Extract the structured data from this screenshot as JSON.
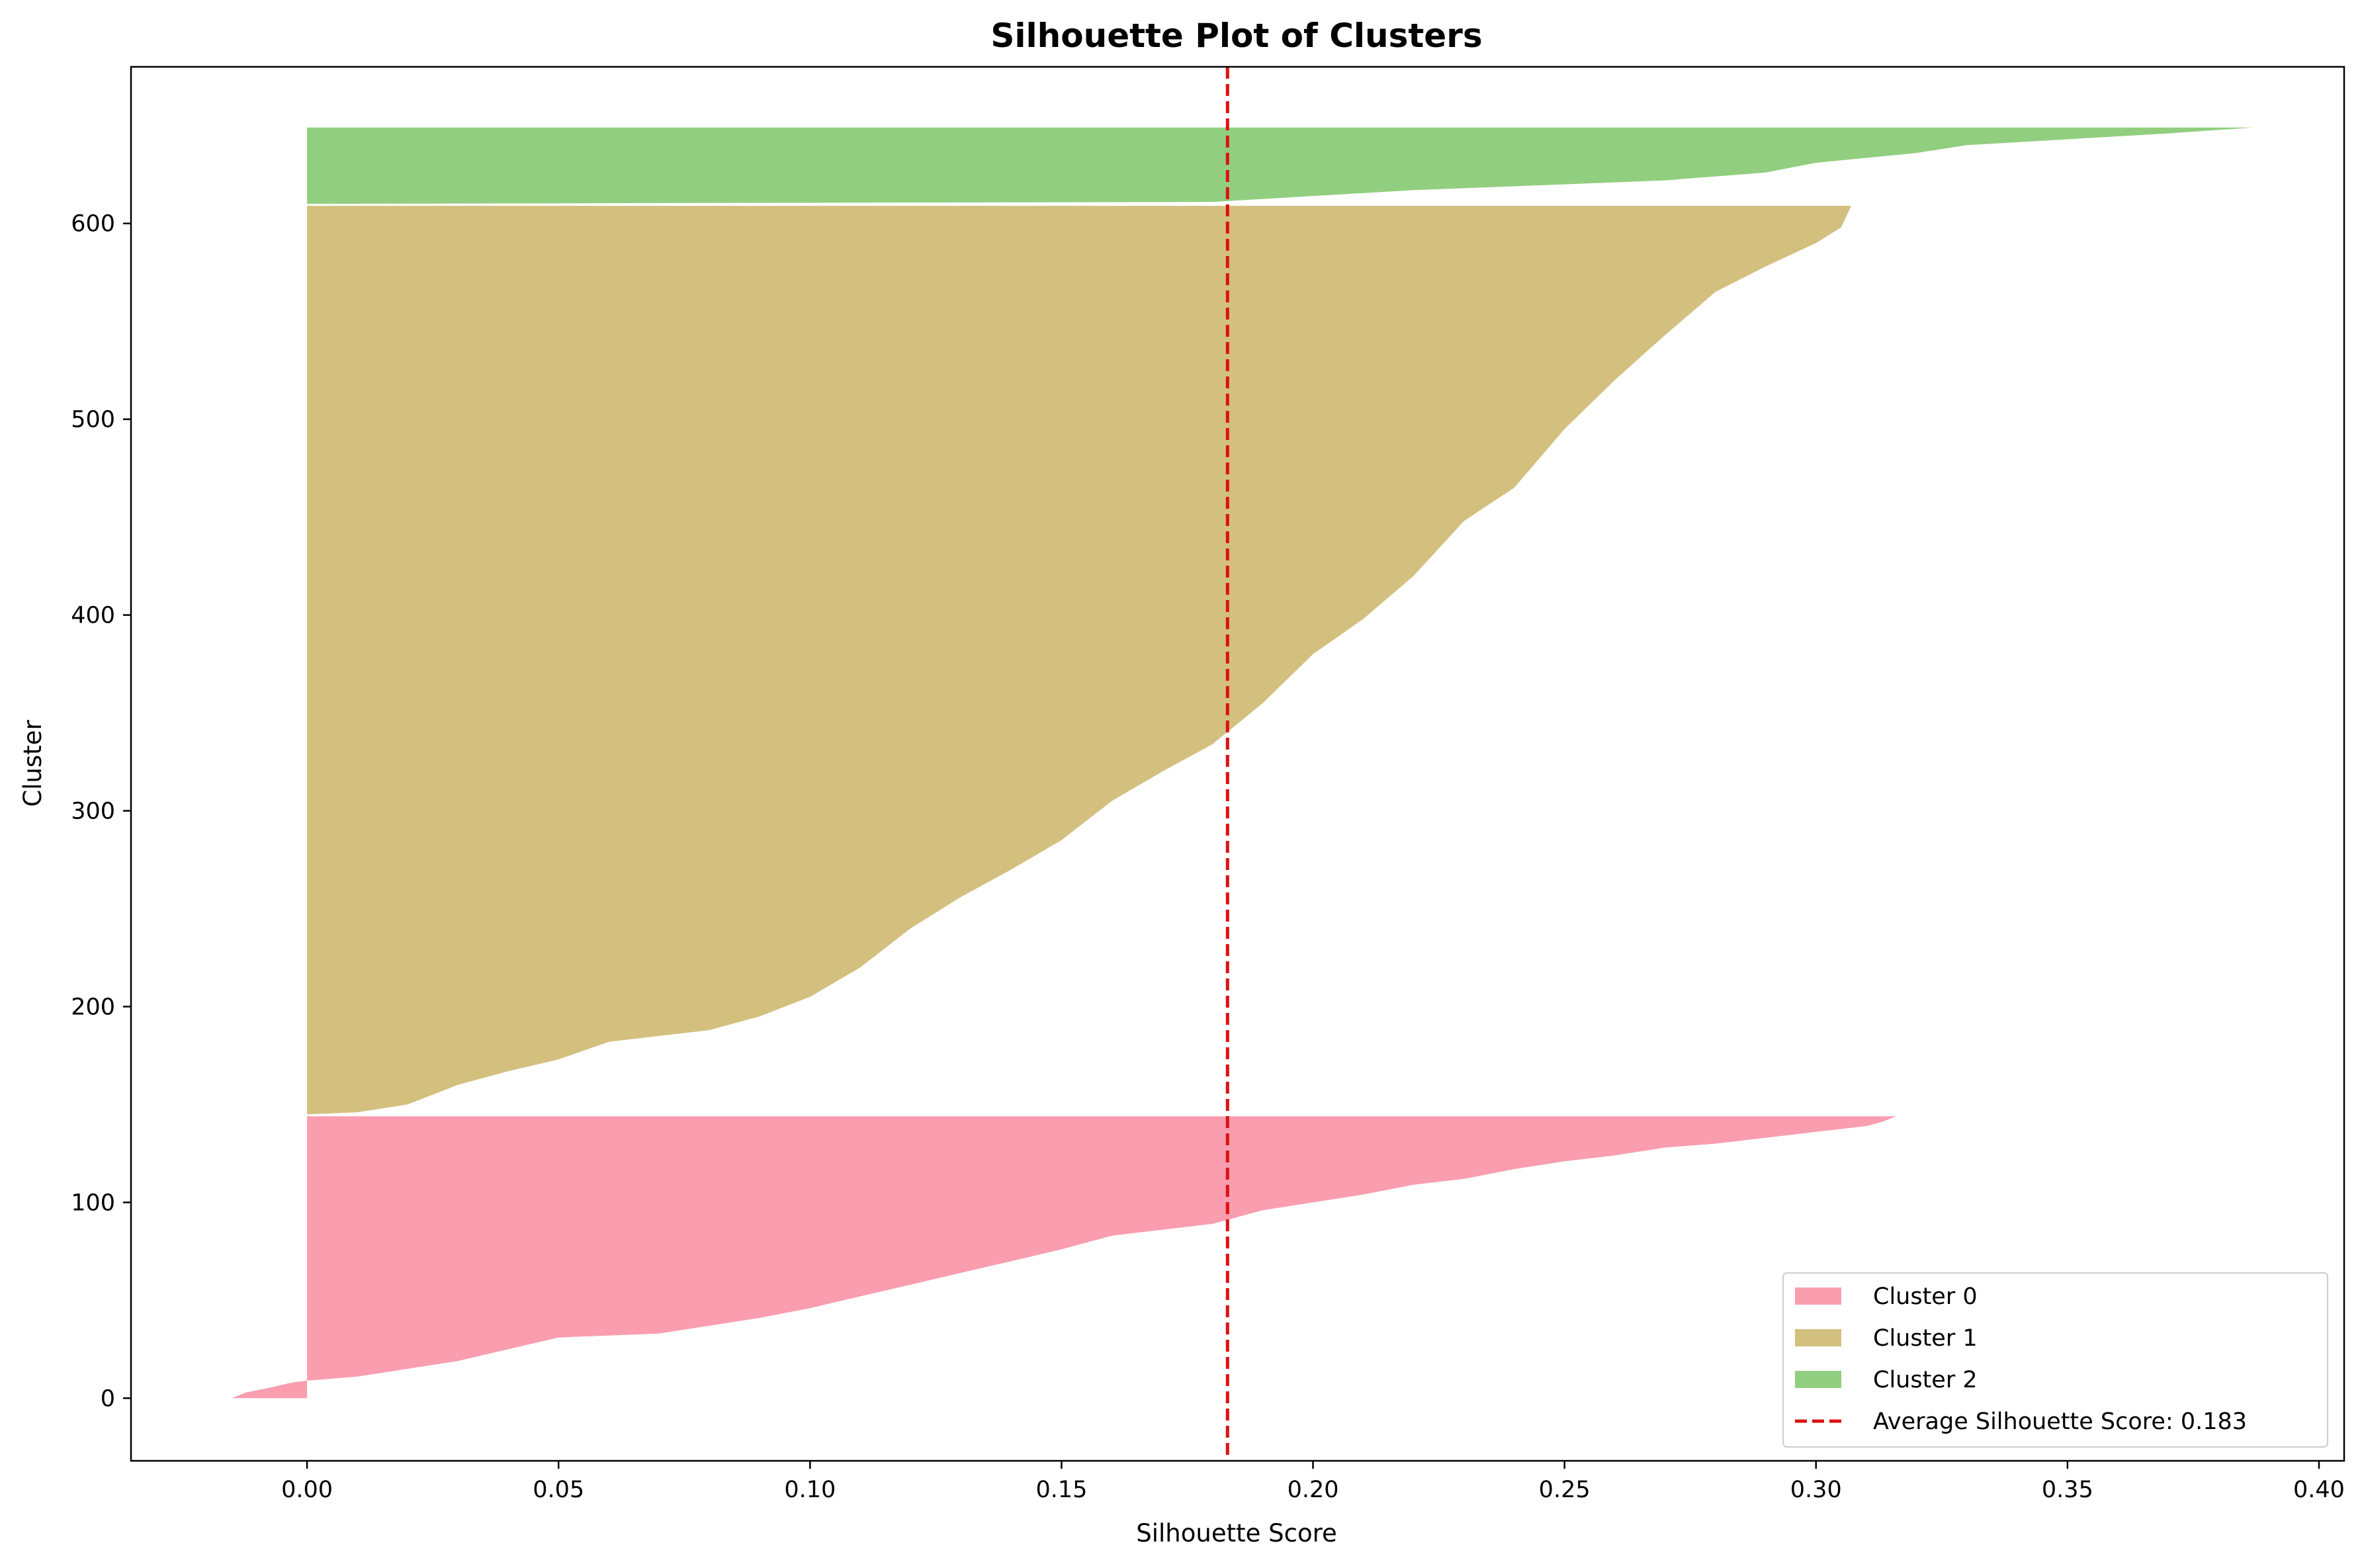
{
  "chart_data": {
    "type": "area",
    "orientation": "horizontal",
    "title": "Silhouette Plot of Clusters",
    "xlabel": "Silhouette Score",
    "ylabel": "Cluster",
    "xlim": [
      -0.035,
      0.405
    ],
    "ylim": [
      -32,
      680
    ],
    "x_ticks": [
      0.0,
      0.05,
      0.1,
      0.15,
      0.2,
      0.25,
      0.3,
      0.35,
      0.4
    ],
    "x_tick_labels": [
      "0.00",
      "0.05",
      "0.10",
      "0.15",
      "0.20",
      "0.25",
      "0.30",
      "0.35",
      "0.40"
    ],
    "y_ticks": [
      0,
      100,
      200,
      300,
      400,
      500,
      600
    ],
    "y_tick_labels": [
      "0",
      "100",
      "200",
      "300",
      "400",
      "500",
      "600"
    ],
    "grid": false,
    "legend_position": "lower-right",
    "series": [
      {
        "name": "Cluster 0",
        "color": "#f7849b",
        "y_start": 0,
        "points": [
          [
            -0.015,
            0
          ],
          [
            -0.012,
            3
          ],
          [
            -0.008,
            5
          ],
          [
            -0.003,
            8
          ],
          [
            0.0,
            9
          ],
          [
            0.01,
            11
          ],
          [
            0.02,
            15
          ],
          [
            0.03,
            19
          ],
          [
            0.04,
            25
          ],
          [
            0.05,
            31
          ],
          [
            0.07,
            33
          ],
          [
            0.08,
            37
          ],
          [
            0.09,
            41
          ],
          [
            0.1,
            46
          ],
          [
            0.11,
            52
          ],
          [
            0.12,
            58
          ],
          [
            0.13,
            64
          ],
          [
            0.14,
            70
          ],
          [
            0.15,
            76
          ],
          [
            0.16,
            83
          ],
          [
            0.17,
            86
          ],
          [
            0.18,
            89
          ],
          [
            0.19,
            96
          ],
          [
            0.2,
            100
          ],
          [
            0.21,
            104
          ],
          [
            0.22,
            109
          ],
          [
            0.23,
            112
          ],
          [
            0.24,
            117
          ],
          [
            0.25,
            121
          ],
          [
            0.26,
            124
          ],
          [
            0.27,
            128
          ],
          [
            0.28,
            130
          ],
          [
            0.29,
            133
          ],
          [
            0.3,
            136
          ],
          [
            0.31,
            139
          ],
          [
            0.313,
            141
          ],
          [
            0.316,
            144
          ]
        ]
      },
      {
        "name": "Cluster 1",
        "color": "#c8b05f",
        "y_start": 145,
        "points": [
          [
            0.0,
            145
          ],
          [
            0.01,
            146
          ],
          [
            0.02,
            150
          ],
          [
            0.03,
            160
          ],
          [
            0.04,
            167
          ],
          [
            0.05,
            173
          ],
          [
            0.06,
            182
          ],
          [
            0.07,
            185
          ],
          [
            0.08,
            188
          ],
          [
            0.09,
            195
          ],
          [
            0.1,
            205
          ],
          [
            0.11,
            220
          ],
          [
            0.12,
            240
          ],
          [
            0.13,
            256
          ],
          [
            0.14,
            270
          ],
          [
            0.15,
            285
          ],
          [
            0.16,
            305
          ],
          [
            0.17,
            320
          ],
          [
            0.18,
            334
          ],
          [
            0.19,
            355
          ],
          [
            0.2,
            380
          ],
          [
            0.21,
            398
          ],
          [
            0.22,
            420
          ],
          [
            0.23,
            448
          ],
          [
            0.24,
            465
          ],
          [
            0.25,
            495
          ],
          [
            0.26,
            520
          ],
          [
            0.27,
            543
          ],
          [
            0.28,
            565
          ],
          [
            0.29,
            578
          ],
          [
            0.3,
            590
          ],
          [
            0.305,
            598
          ],
          [
            0.307,
            609
          ]
        ]
      },
      {
        "name": "Cluster 2",
        "color": "#77c25f",
        "y_start": 610,
        "points": [
          [
            0.0,
            610
          ],
          [
            0.18,
            611
          ],
          [
            0.2,
            614
          ],
          [
            0.22,
            617
          ],
          [
            0.25,
            620
          ],
          [
            0.27,
            622
          ],
          [
            0.29,
            626
          ],
          [
            0.3,
            631
          ],
          [
            0.32,
            636
          ],
          [
            0.33,
            640
          ],
          [
            0.35,
            643
          ],
          [
            0.37,
            646
          ],
          [
            0.387,
            649
          ]
        ]
      }
    ],
    "reference_line": {
      "label": "Average Silhouette Score: 0.183",
      "x": 0.183,
      "color": "#dd1111",
      "style": "dashed"
    }
  }
}
